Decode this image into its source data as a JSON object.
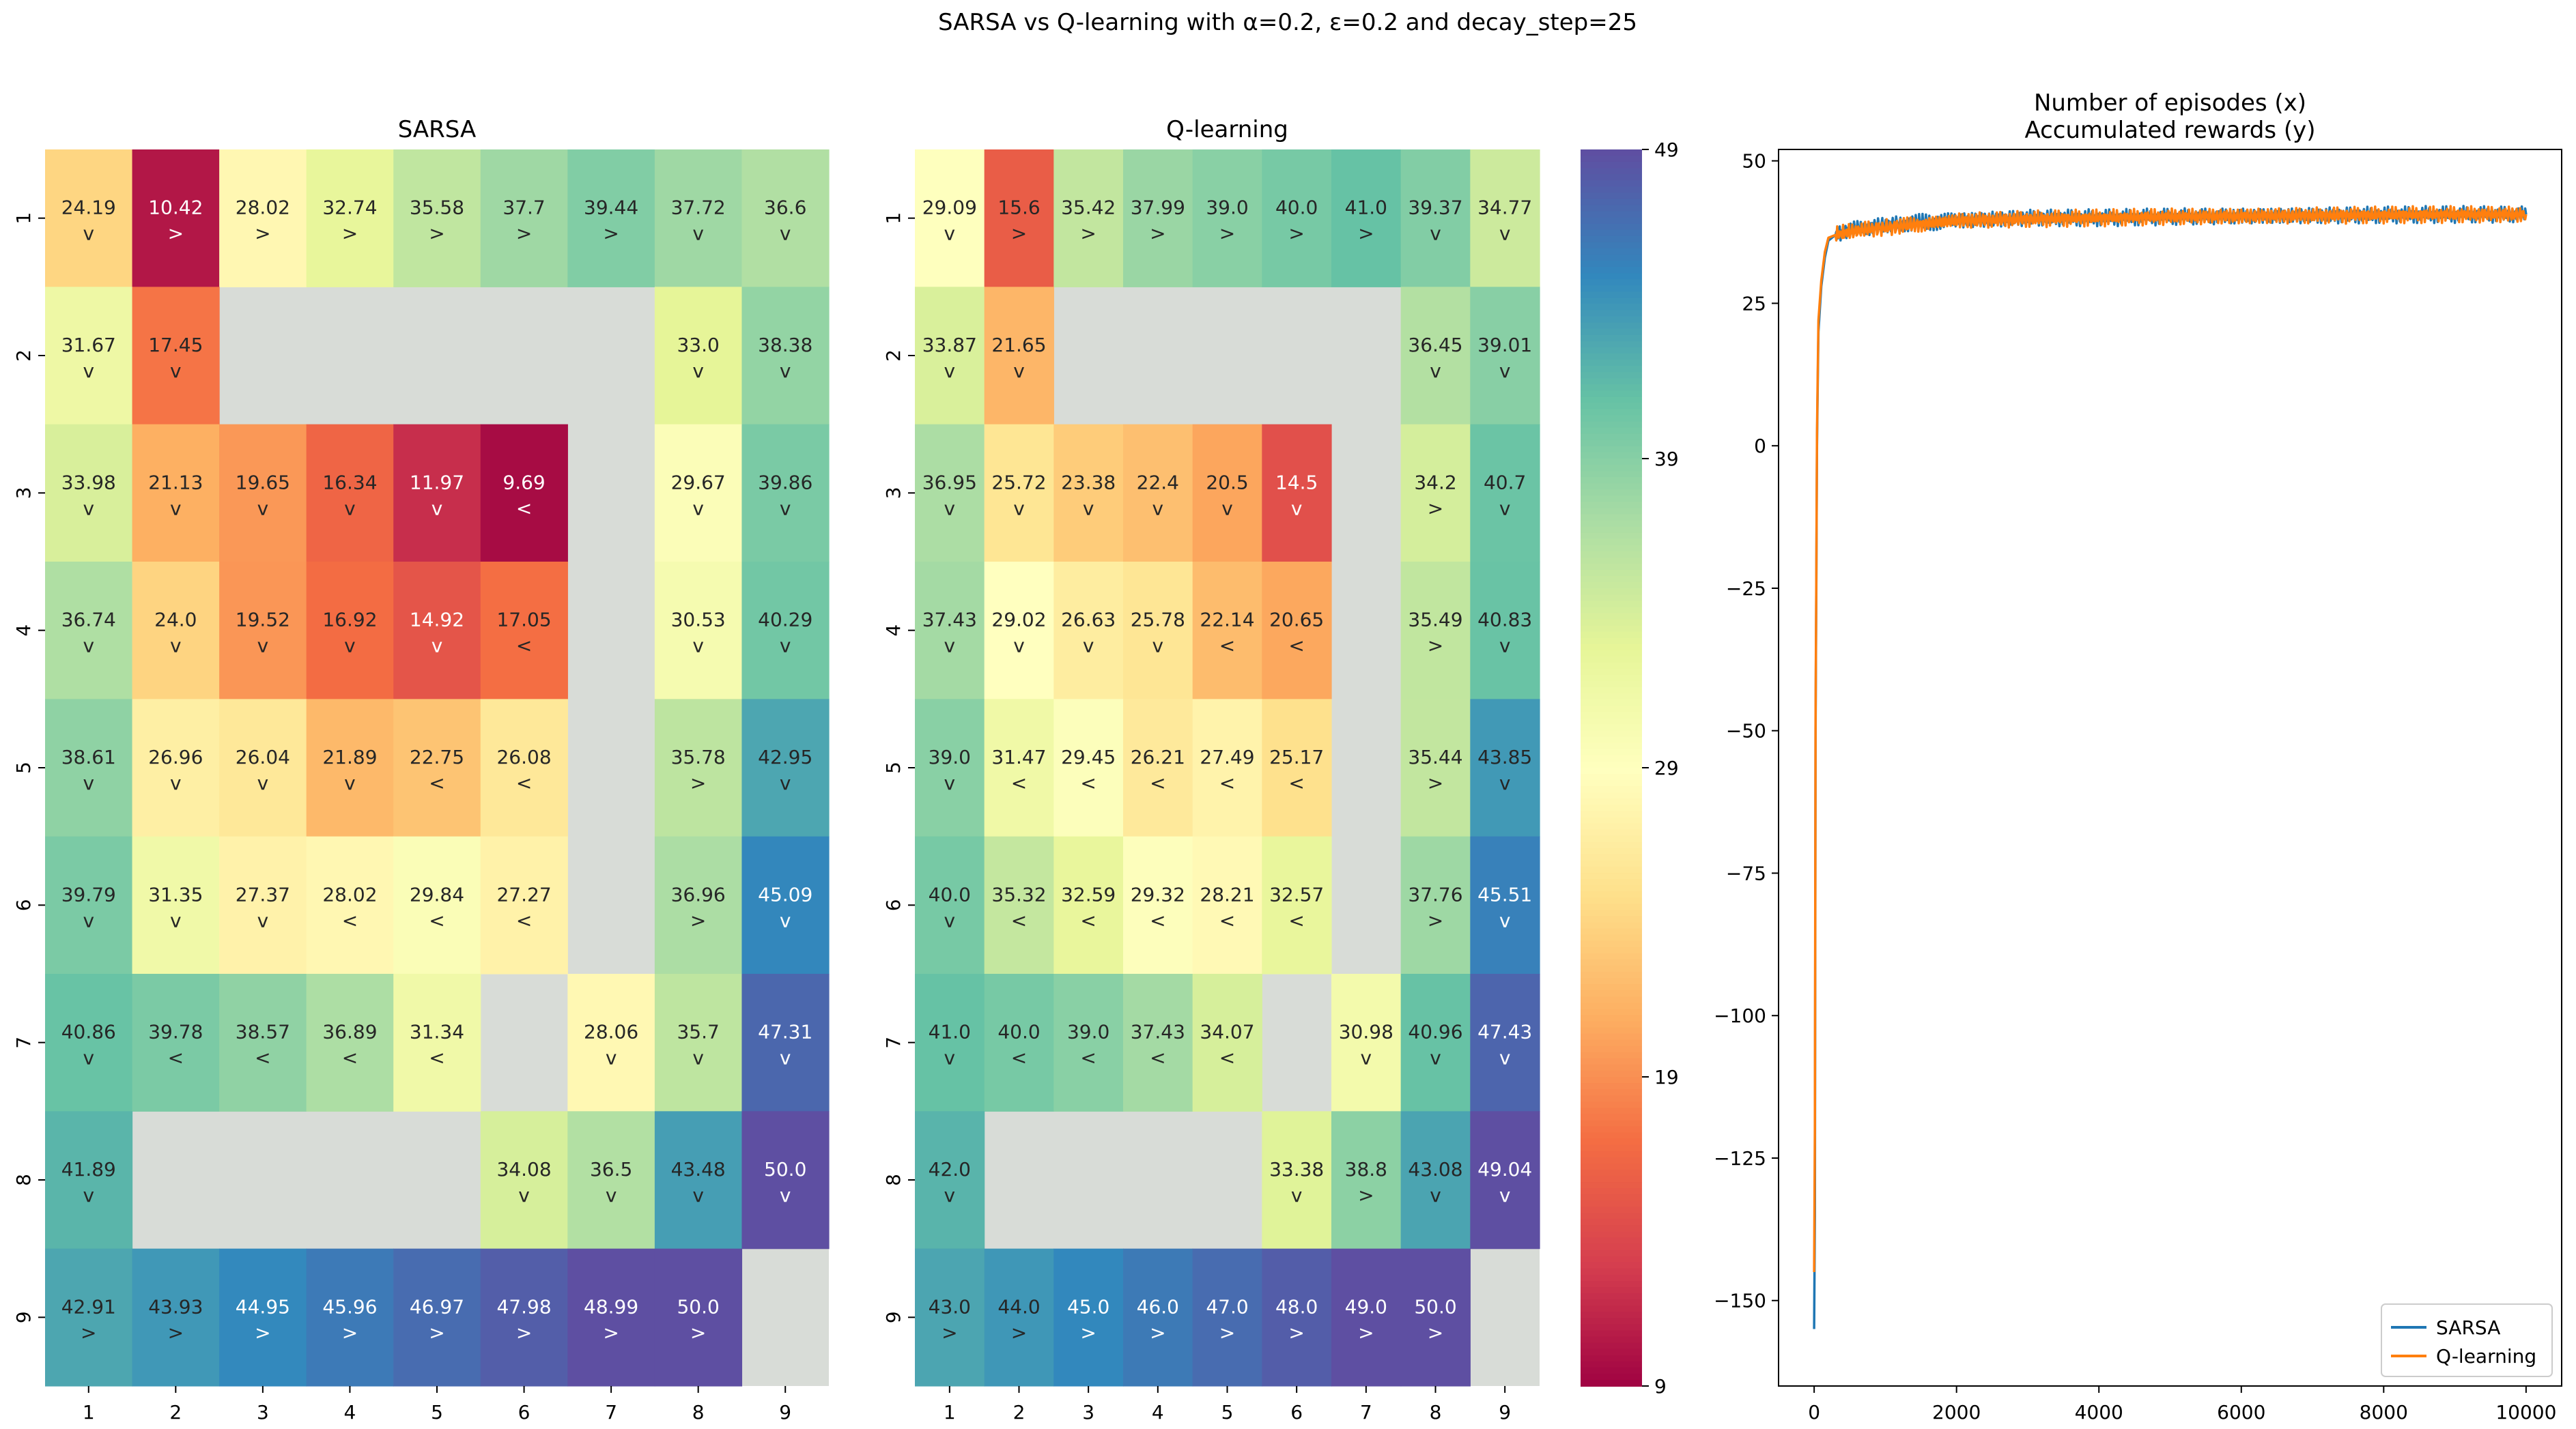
{
  "figure": {
    "suptitle": "SARSA vs Q-learning with α=0.2, ε=0.2 and decay_step=25"
  },
  "chart_data": [
    {
      "type": "heatmap",
      "title": "SARSA",
      "row_labels": [
        "1",
        "2",
        "3",
        "4",
        "5",
        "6",
        "7",
        "8",
        "9"
      ],
      "col_labels": [
        "1",
        "2",
        "3",
        "4",
        "5",
        "6",
        "7",
        "8",
        "9"
      ],
      "cmap": "Spectral",
      "vmin": 9,
      "vmax": 49,
      "values": [
        [
          24.19,
          10.42,
          28.02,
          32.74,
          35.58,
          37.7,
          39.44,
          37.72,
          36.6
        ],
        [
          31.67,
          17.45,
          null,
          null,
          null,
          null,
          null,
          33.0,
          38.38
        ],
        [
          33.98,
          21.13,
          19.65,
          16.34,
          11.97,
          9.69,
          null,
          29.67,
          39.86
        ],
        [
          36.74,
          24.0,
          19.52,
          16.92,
          14.92,
          17.05,
          null,
          30.53,
          40.29
        ],
        [
          38.61,
          26.96,
          26.04,
          21.89,
          22.75,
          26.08,
          null,
          35.78,
          42.95
        ],
        [
          39.79,
          31.35,
          27.37,
          28.02,
          29.84,
          27.27,
          null,
          36.96,
          45.09
        ],
        [
          40.86,
          39.78,
          38.57,
          36.89,
          31.34,
          null,
          28.06,
          35.7,
          47.31
        ],
        [
          41.89,
          null,
          null,
          null,
          null,
          34.08,
          36.5,
          43.48,
          50.0
        ],
        [
          42.91,
          43.93,
          44.95,
          45.96,
          46.97,
          47.98,
          48.99,
          50.0,
          null
        ]
      ],
      "labels": [
        [
          "24.19",
          "10.42",
          "28.02",
          "32.74",
          "35.58",
          "37.7",
          "39.44",
          "37.72",
          "36.6"
        ],
        [
          "31.67",
          "17.45",
          "",
          "",
          "",
          "",
          "",
          "33.0",
          "38.38"
        ],
        [
          "33.98",
          "21.13",
          "19.65",
          "16.34",
          "11.97",
          "9.69",
          "",
          "29.67",
          "39.86"
        ],
        [
          "36.74",
          "24.0",
          "19.52",
          "16.92",
          "14.92",
          "17.05",
          "",
          "30.53",
          "40.29"
        ],
        [
          "38.61",
          "26.96",
          "26.04",
          "21.89",
          "22.75",
          "26.08",
          "",
          "35.78",
          "42.95"
        ],
        [
          "39.79",
          "31.35",
          "27.37",
          "28.02",
          "29.84",
          "27.27",
          "",
          "36.96",
          "45.09"
        ],
        [
          "40.86",
          "39.78",
          "38.57",
          "36.89",
          "31.34",
          "",
          "28.06",
          "35.7",
          "47.31"
        ],
        [
          "41.89",
          "",
          "",
          "",
          "",
          "34.08",
          "36.5",
          "43.48",
          "50.0"
        ],
        [
          "42.91",
          "43.93",
          "44.95",
          "45.96",
          "46.97",
          "47.98",
          "48.99",
          "50.0",
          ""
        ]
      ],
      "actions": [
        [
          "v",
          ">",
          ">",
          ">",
          ">",
          ">",
          ">",
          "v",
          "v"
        ],
        [
          "v",
          "v",
          "",
          "",
          "",
          "",
          "",
          "v",
          "v"
        ],
        [
          "v",
          "v",
          "v",
          "v",
          "v",
          "<",
          "",
          "v",
          "v"
        ],
        [
          "v",
          "v",
          "v",
          "v",
          "v",
          "<",
          "",
          "v",
          "v"
        ],
        [
          "v",
          "v",
          "v",
          "v",
          "<",
          "<",
          "",
          ">",
          "v"
        ],
        [
          "v",
          "v",
          "v",
          "<",
          "<",
          "<",
          "",
          ">",
          "v"
        ],
        [
          "v",
          "<",
          "<",
          "<",
          "<",
          "",
          "v",
          "v",
          "v"
        ],
        [
          "v",
          "",
          "",
          "",
          "",
          "v",
          "v",
          "v",
          "v"
        ],
        [
          ">",
          ">",
          ">",
          ">",
          ">",
          ">",
          ">",
          ">",
          ""
        ]
      ]
    },
    {
      "type": "heatmap",
      "title": "Q-learning",
      "row_labels": [
        "1",
        "2",
        "3",
        "4",
        "5",
        "6",
        "7",
        "8",
        "9"
      ],
      "col_labels": [
        "1",
        "2",
        "3",
        "4",
        "5",
        "6",
        "7",
        "8",
        "9"
      ],
      "cmap": "Spectral",
      "vmin": 9,
      "vmax": 49,
      "colorbar_ticks": [
        "9",
        "19",
        "29",
        "39",
        "49"
      ],
      "values": [
        [
          29.09,
          15.6,
          35.42,
          37.99,
          39.0,
          40.0,
          41.0,
          39.37,
          34.77
        ],
        [
          33.87,
          21.65,
          null,
          null,
          null,
          null,
          null,
          36.45,
          39.01
        ],
        [
          36.95,
          25.72,
          23.38,
          22.4,
          20.5,
          14.5,
          null,
          34.2,
          40.7
        ],
        [
          37.43,
          29.02,
          26.63,
          25.78,
          22.14,
          20.65,
          null,
          35.49,
          40.83
        ],
        [
          39.0,
          31.47,
          29.45,
          26.21,
          27.49,
          25.17,
          null,
          35.44,
          43.85
        ],
        [
          40.0,
          35.32,
          32.59,
          29.32,
          28.21,
          32.57,
          null,
          37.76,
          45.51
        ],
        [
          41.0,
          40.0,
          39.0,
          37.43,
          34.07,
          null,
          30.98,
          40.96,
          47.43
        ],
        [
          42.0,
          null,
          null,
          null,
          null,
          33.38,
          38.8,
          43.08,
          49.04
        ],
        [
          43.0,
          44.0,
          45.0,
          46.0,
          47.0,
          48.0,
          49.0,
          50.0,
          null
        ]
      ],
      "labels": [
        [
          "29.09",
          "15.6",
          "35.42",
          "37.99",
          "39.0",
          "40.0",
          "41.0",
          "39.37",
          "34.77"
        ],
        [
          "33.87",
          "21.65",
          "",
          "",
          "",
          "",
          "",
          "36.45",
          "39.01"
        ],
        [
          "36.95",
          "25.72",
          "23.38",
          "22.4",
          "20.5",
          "14.5",
          "",
          "34.2",
          "40.7"
        ],
        [
          "37.43",
          "29.02",
          "26.63",
          "25.78",
          "22.14",
          "20.65",
          "",
          "35.49",
          "40.83"
        ],
        [
          "39.0",
          "31.47",
          "29.45",
          "26.21",
          "27.49",
          "25.17",
          "",
          "35.44",
          "43.85"
        ],
        [
          "40.0",
          "35.32",
          "32.59",
          "29.32",
          "28.21",
          "32.57",
          "",
          "37.76",
          "45.51"
        ],
        [
          "41.0",
          "40.0",
          "39.0",
          "37.43",
          "34.07",
          "",
          "30.98",
          "40.96",
          "47.43"
        ],
        [
          "42.0",
          "",
          "",
          "",
          "",
          "33.38",
          "38.8",
          "43.08",
          "49.04"
        ],
        [
          "43.0",
          "44.0",
          "45.0",
          "46.0",
          "47.0",
          "48.0",
          "49.0",
          "50.0",
          ""
        ]
      ],
      "actions": [
        [
          "v",
          ">",
          ">",
          ">",
          ">",
          ">",
          ">",
          "v",
          "v"
        ],
        [
          "v",
          "v",
          "",
          "",
          "",
          "",
          "",
          "v",
          "v"
        ],
        [
          "v",
          "v",
          "v",
          "v",
          "v",
          "v",
          "",
          ">",
          "v"
        ],
        [
          "v",
          "v",
          "v",
          "v",
          "<",
          "<",
          "",
          ">",
          "v"
        ],
        [
          "v",
          "<",
          "<",
          "<",
          "<",
          "<",
          "",
          ">",
          "v"
        ],
        [
          "v",
          "<",
          "<",
          "<",
          "<",
          "<",
          "",
          ">",
          "v"
        ],
        [
          "v",
          "<",
          "<",
          "<",
          "<",
          "",
          "v",
          "v",
          "v"
        ],
        [
          "v",
          "",
          "",
          "",
          "",
          "v",
          ">",
          "v",
          "v"
        ],
        [
          ">",
          ">",
          ">",
          ">",
          ">",
          ">",
          ">",
          ">",
          ""
        ]
      ]
    },
    {
      "type": "line",
      "title": "Number of episodes (x)",
      "subtitle": "Accumulated rewards (y)",
      "xlim": [
        0,
        10000
      ],
      "ylim": [
        -165,
        52
      ],
      "xticks": [
        0,
        2000,
        4000,
        6000,
        8000,
        10000
      ],
      "yticks": [
        -150,
        -125,
        -100,
        -75,
        -50,
        -25,
        0,
        25,
        50
      ],
      "ytick_labels": [
        "−150",
        "−125",
        "−100",
        "−75",
        "−50",
        "−25",
        "0",
        "25",
        "50"
      ],
      "legend_position": "lower-right",
      "series": [
        {
          "name": "SARSA",
          "color": "#1f77b4",
          "x": [
            0,
            10,
            20,
            40,
            60,
            100,
            150,
            200,
            300,
            500,
            800,
            1200,
            2000,
            3000,
            4000,
            5000,
            6000,
            7000,
            8000,
            9000,
            10000
          ],
          "y": [
            -155,
            -135,
            -50,
            0,
            20,
            28,
            33,
            36,
            37,
            38,
            38.5,
            39,
            39.5,
            40,
            40,
            40.2,
            40.3,
            40.4,
            40.5,
            40.6,
            40.6
          ]
        },
        {
          "name": "Q-learning",
          "color": "#ff7f0e",
          "x": [
            0,
            10,
            20,
            40,
            60,
            100,
            150,
            200,
            300,
            500,
            800,
            1200,
            2000,
            3000,
            4000,
            5000,
            6000,
            7000,
            8000,
            9000,
            10000
          ],
          "y": [
            -145,
            -120,
            -48,
            2,
            22,
            29,
            34,
            36.5,
            37,
            37.5,
            38,
            38.5,
            39.5,
            39.8,
            40,
            40.2,
            40.3,
            40.4,
            40.5,
            40.6,
            40.6
          ]
        }
      ]
    }
  ]
}
